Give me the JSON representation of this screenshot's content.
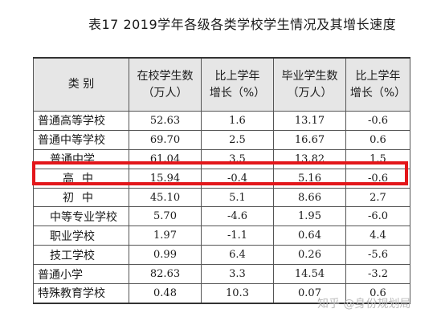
{
  "title": "表17 2019学年各级各类学校学生情况及其增长速度",
  "headers": [
    [
      "类 别"
    ],
    [
      "在校学生数",
      "（万人）"
    ],
    [
      "比上学年",
      "增长（%）"
    ],
    [
      "毕业学生数",
      "（万人）"
    ],
    [
      "比上学年",
      "增长（%）"
    ]
  ],
  "rows": [
    {
      "name": "普通高等学校",
      "level": 0,
      "enrolled": "52.63",
      "enrolled_growth": "1.6",
      "graduates": "13.17",
      "graduates_growth": "-0.6"
    },
    {
      "name": "普通中等学校",
      "level": 0,
      "enrolled": "69.70",
      "enrolled_growth": "2.5",
      "graduates": "16.67",
      "graduates_growth": "0.6"
    },
    {
      "name": "普通中学",
      "level": 1,
      "enrolled": "61.04",
      "enrolled_growth": "3.5",
      "graduates": "13.82",
      "graduates_growth": "1.5"
    },
    {
      "name": "高中",
      "level": 2,
      "enrolled": "15.94",
      "enrolled_growth": "-0.4",
      "graduates": "5.16",
      "graduates_growth": "-0.6"
    },
    {
      "name": "初中",
      "level": 2,
      "enrolled": "45.10",
      "enrolled_growth": "5.1",
      "graduates": "8.66",
      "graduates_growth": "2.7"
    },
    {
      "name": "中等专业学校",
      "level": 1,
      "enrolled": "5.70",
      "enrolled_growth": "-4.6",
      "graduates": "1.95",
      "graduates_growth": "-6.0"
    },
    {
      "name": "职业学校",
      "level": 1,
      "enrolled": "1.97",
      "enrolled_growth": "-1.1",
      "graduates": "0.64",
      "graduates_growth": "4.4"
    },
    {
      "name": "技工学校",
      "level": 1,
      "enrolled": "0.99",
      "enrolled_growth": "6.4",
      "graduates": "0.26",
      "graduates_growth": "-5.6"
    },
    {
      "name": "普通小学",
      "level": 0,
      "enrolled": "82.63",
      "enrolled_growth": "3.3",
      "graduates": "14.54",
      "graduates_growth": "-3.2"
    },
    {
      "name": "特殊教育学校",
      "level": 0,
      "enrolled": "0.48",
      "enrolled_growth": "10.3",
      "graduates": "0.07",
      "graduates_growth": "0.6"
    }
  ],
  "highlight_color": "#e3161a",
  "watermark": "知乎 @身份规划局"
}
